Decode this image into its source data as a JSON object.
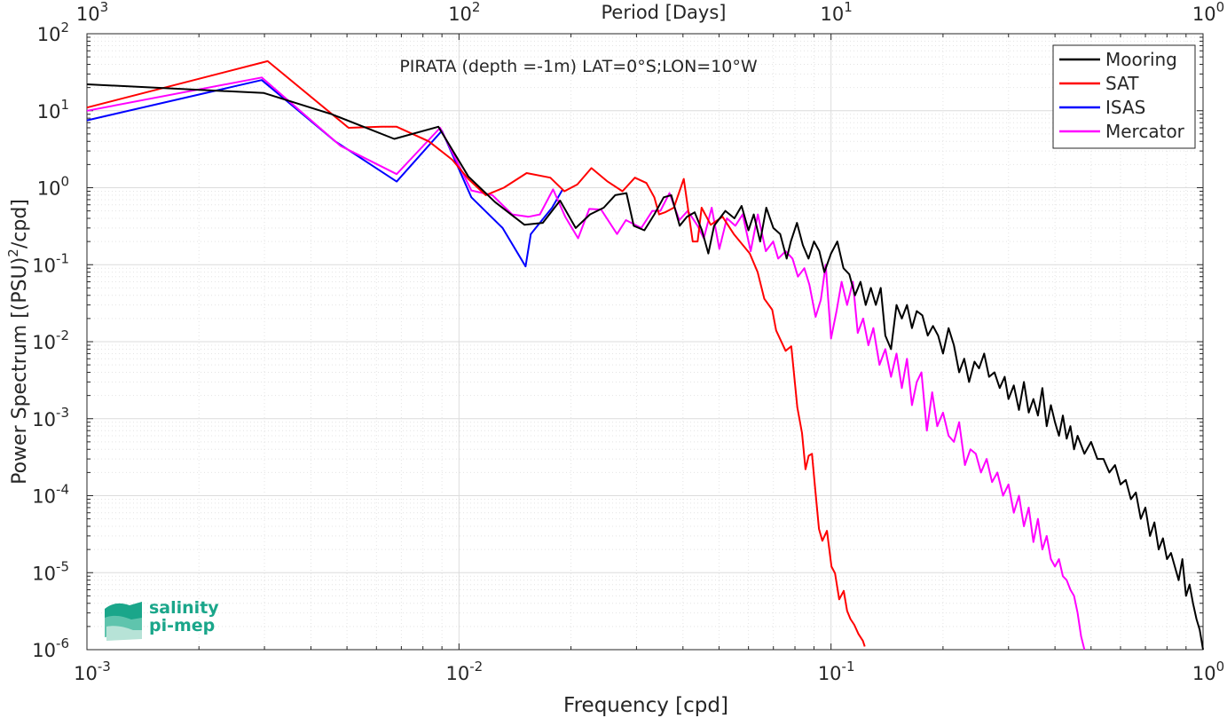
{
  "chart_data": {
    "type": "line",
    "title": "PIRATA (depth =-1m) LAT=0°S;LON=10°W",
    "xlabel": "Frequency [cpd]",
    "ylabel_main": "Power Spectrum [(PSU)",
    "ylabel_sup": "2",
    "ylabel_tail": "/cpd]",
    "top_axis_label": "Period [Days]",
    "x_scale": "log",
    "y_scale": "log",
    "xlim": [
      0.001,
      1
    ],
    "ylim": [
      1e-06,
      100
    ],
    "grid": true,
    "minor_grid": true,
    "legend_position": "top-right",
    "x_ticks": [
      {
        "base": "10",
        "exp": "-3"
      },
      {
        "base": "10",
        "exp": "-2"
      },
      {
        "base": "10",
        "exp": "-1"
      },
      {
        "base": "10",
        "exp": "0"
      }
    ],
    "top_ticks": [
      {
        "base": "10",
        "exp": "3"
      },
      {
        "base": "10",
        "exp": "2"
      },
      {
        "base": "10",
        "exp": "1"
      },
      {
        "base": "10",
        "exp": "0"
      }
    ],
    "y_ticks": [
      {
        "base": "10",
        "exp": "2"
      },
      {
        "base": "10",
        "exp": "1"
      },
      {
        "base": "10",
        "exp": "0"
      },
      {
        "base": "10",
        "exp": "-1"
      },
      {
        "base": "10",
        "exp": "-2"
      },
      {
        "base": "10",
        "exp": "-3"
      },
      {
        "base": "10",
        "exp": "-4"
      },
      {
        "base": "10",
        "exp": "-5"
      },
      {
        "base": "10",
        "exp": "-6"
      }
    ],
    "series": [
      {
        "name": "Mooring",
        "color": "#000000",
        "x": [
          0.001,
          0.00299,
          0.00455,
          0.0067,
          0.0088,
          0.0106,
          0.0125,
          0.015,
          0.0168,
          0.0187,
          0.0206,
          0.0225,
          0.0245,
          0.0263,
          0.0282,
          0.0295,
          0.0315,
          0.0335,
          0.0355,
          0.0372,
          0.0392,
          0.041,
          0.043,
          0.045,
          0.0468,
          0.0485,
          0.052,
          0.055,
          0.0575,
          0.06,
          0.062,
          0.0645,
          0.067,
          0.07,
          0.073,
          0.076,
          0.078,
          0.081,
          0.084,
          0.087,
          0.09,
          0.093,
          0.096,
          0.1,
          0.104,
          0.108,
          0.112,
          0.116,
          0.12,
          0.124,
          0.128,
          0.132,
          0.136,
          0.14,
          0.145,
          0.15,
          0.155,
          0.16,
          0.165,
          0.17,
          0.176,
          0.182,
          0.188,
          0.194,
          0.2,
          0.207,
          0.214,
          0.221,
          0.228,
          0.235,
          0.243,
          0.25,
          0.258,
          0.266,
          0.275,
          0.284,
          0.293,
          0.3,
          0.31,
          0.32,
          0.33,
          0.34,
          0.35,
          0.36,
          0.37,
          0.38,
          0.39,
          0.4,
          0.41,
          0.42,
          0.43,
          0.44,
          0.45,
          0.46,
          0.48,
          0.5,
          0.52,
          0.54,
          0.56,
          0.58,
          0.6,
          0.62,
          0.64,
          0.66,
          0.68,
          0.7,
          0.72,
          0.74,
          0.76,
          0.78,
          0.8,
          0.82,
          0.84,
          0.86,
          0.88,
          0.9,
          0.92,
          0.94,
          0.96,
          0.98,
          1.0
        ],
        "y": [
          22,
          17,
          9,
          4.3,
          6.2,
          1.4,
          0.65,
          0.33,
          0.35,
          0.68,
          0.3,
          0.45,
          0.55,
          0.8,
          0.85,
          0.32,
          0.28,
          0.45,
          0.75,
          0.8,
          0.32,
          0.42,
          0.48,
          0.28,
          0.14,
          0.32,
          0.5,
          0.4,
          0.58,
          0.28,
          0.45,
          0.2,
          0.55,
          0.3,
          0.25,
          0.12,
          0.2,
          0.35,
          0.18,
          0.12,
          0.2,
          0.15,
          0.08,
          0.14,
          0.2,
          0.09,
          0.075,
          0.04,
          0.06,
          0.03,
          0.05,
          0.03,
          0.05,
          0.012,
          0.008,
          0.03,
          0.02,
          0.03,
          0.015,
          0.025,
          0.022,
          0.012,
          0.016,
          0.012,
          0.007,
          0.015,
          0.009,
          0.004,
          0.006,
          0.003,
          0.0055,
          0.0045,
          0.007,
          0.0035,
          0.004,
          0.0025,
          0.0035,
          0.0018,
          0.0027,
          0.0013,
          0.003,
          0.0012,
          0.0018,
          0.0011,
          0.0025,
          0.0008,
          0.0015,
          0.0009,
          0.0006,
          0.0011,
          0.00055,
          0.0008,
          0.0004,
          0.0006,
          0.00035,
          0.0005,
          0.0003,
          0.0003,
          0.0002,
          0.00025,
          0.00014,
          0.00016,
          9e-05,
          0.00011,
          5e-05,
          7e-05,
          3e-05,
          4.5e-05,
          2e-05,
          2.8e-05,
          1.5e-05,
          1.8e-05,
          1.2e-05,
          8e-06,
          1.5e-05,
          5e-06,
          7e-06,
          4e-06,
          2.5e-06,
          1.8e-06,
          1e-06
        ]
      },
      {
        "name": "SAT",
        "color": "#ff0000",
        "x": [
          0.001,
          0.00306,
          0.00505,
          0.0062,
          0.0068,
          0.0083,
          0.0096,
          0.0106,
          0.0118,
          0.0132,
          0.0152,
          0.0176,
          0.0192,
          0.0208,
          0.0227,
          0.0251,
          0.0275,
          0.0297,
          0.0319,
          0.0335,
          0.0345,
          0.0358,
          0.0378,
          0.0402,
          0.0425,
          0.0438,
          0.0449,
          0.0475,
          0.0511,
          0.0548,
          0.0605,
          0.0635,
          0.0662,
          0.0695,
          0.0712,
          0.0755,
          0.0782,
          0.0812,
          0.0836,
          0.0854,
          0.0871,
          0.0889,
          0.0907,
          0.0928,
          0.0948,
          0.0975,
          0.1003,
          0.1025,
          0.1052,
          0.1082,
          0.1105,
          0.1128,
          0.1155,
          0.1185,
          0.1218,
          0.1232
        ],
        "y": [
          11,
          44,
          6,
          6.2,
          6.2,
          4,
          2.3,
          1.3,
          0.8,
          1,
          1.55,
          1.35,
          0.9,
          1.1,
          1.8,
          1.2,
          0.9,
          1.35,
          1.15,
          0.75,
          0.45,
          0.48,
          0.55,
          1.3,
          0.2,
          0.2,
          0.55,
          0.33,
          0.42,
          0.25,
          0.14,
          0.08,
          0.036,
          0.026,
          0.014,
          0.0076,
          0.0087,
          0.0014,
          0.00065,
          0.00022,
          0.00033,
          0.00035,
          0.00012,
          3.7e-05,
          2.6e-05,
          3.5e-05,
          1.2e-05,
          9.8e-06,
          4.5e-06,
          5.8e-06,
          3.2e-06,
          2.5e-06,
          2.1e-06,
          1.6e-06,
          1.3e-06,
          1.1e-06
        ]
      },
      {
        "name": "ISAS",
        "color": "#0000ff",
        "x": [
          0.001,
          0.00295,
          0.00465,
          0.0068,
          0.009,
          0.0108,
          0.0131,
          0.0151,
          0.0156,
          0.0178,
          0.019
        ],
        "y": [
          7.5,
          25,
          4,
          1.2,
          5.5,
          0.75,
          0.3,
          0.095,
          0.25,
          0.55,
          0.95
        ]
      },
      {
        "name": "Mercator",
        "color": "#ff00ff",
        "x": [
          0.001,
          0.00295,
          0.0048,
          0.0068,
          0.0089,
          0.0108,
          0.0123,
          0.0139,
          0.0154,
          0.0165,
          0.0179,
          0.0193,
          0.0209,
          0.0224,
          0.0241,
          0.0266,
          0.0281,
          0.0309,
          0.0331,
          0.0348,
          0.0368,
          0.0391,
          0.0412,
          0.0438,
          0.0455,
          0.0478,
          0.0501,
          0.0525,
          0.0553,
          0.0579,
          0.0608,
          0.0636,
          0.0668,
          0.0699,
          0.0721,
          0.0755,
          0.0788,
          0.0815,
          0.0848,
          0.0875,
          0.0909,
          0.0939,
          0.0968,
          0.1,
          0.1035,
          0.1068,
          0.1105,
          0.1145,
          0.118,
          0.122,
          0.126,
          0.13,
          0.135,
          0.14,
          0.145,
          0.15,
          0.155,
          0.16,
          0.165,
          0.17,
          0.175,
          0.181,
          0.187,
          0.193,
          0.2,
          0.207,
          0.214,
          0.221,
          0.229,
          0.237,
          0.245,
          0.253,
          0.262,
          0.271,
          0.28,
          0.29,
          0.3,
          0.31,
          0.32,
          0.33,
          0.34,
          0.35,
          0.36,
          0.37,
          0.38,
          0.39,
          0.4,
          0.41,
          0.42,
          0.43,
          0.44,
          0.45,
          0.46,
          0.47,
          0.48
        ],
        "y": [
          10,
          27,
          3.5,
          1.5,
          6,
          0.92,
          0.8,
          0.45,
          0.42,
          0.45,
          0.95,
          0.42,
          0.22,
          0.53,
          0.52,
          0.25,
          0.38,
          0.3,
          0.5,
          0.5,
          0.85,
          0.38,
          0.5,
          0.32,
          0.22,
          0.55,
          0.16,
          0.4,
          0.32,
          0.45,
          0.15,
          0.45,
          0.15,
          0.2,
          0.12,
          0.15,
          0.12,
          0.07,
          0.09,
          0.055,
          0.021,
          0.035,
          0.1,
          0.011,
          0.025,
          0.06,
          0.03,
          0.06,
          0.013,
          0.02,
          0.009,
          0.015,
          0.005,
          0.008,
          0.0035,
          0.007,
          0.0025,
          0.006,
          0.0015,
          0.003,
          0.004,
          0.0007,
          0.0022,
          0.0008,
          0.0012,
          0.0006,
          0.0005,
          0.0009,
          0.00025,
          0.0004,
          0.00035,
          0.0002,
          0.0003,
          0.00015,
          0.0002,
          0.0001,
          0.00014,
          6e-05,
          0.0001,
          4e-05,
          7e-05,
          2.5e-05,
          5e-05,
          2e-05,
          3e-05,
          1.5e-05,
          1.2e-05,
          1.5e-05,
          9e-06,
          8e-06,
          6e-06,
          5e-06,
          3e-06,
          1.5e-06,
          1e-06
        ]
      }
    ]
  },
  "logo": {
    "line1": "salinity",
    "line2": "pi-mep",
    "color": "#1aa68a"
  }
}
